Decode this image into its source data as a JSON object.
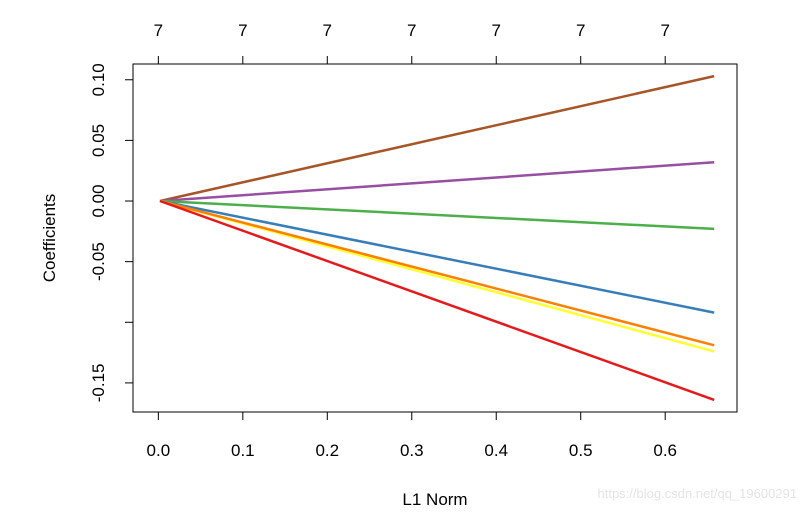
{
  "chart_data": {
    "type": "line",
    "xlabel": "L1 Norm",
    "ylabel": "Coefficients",
    "xlim": [
      -0.03,
      0.685
    ],
    "ylim": [
      -0.174,
      0.113
    ],
    "x_ticks": [
      0.0,
      0.1,
      0.2,
      0.3,
      0.4,
      0.5,
      0.6
    ],
    "x_tick_labels": [
      "0.0",
      "0.1",
      "0.2",
      "0.3",
      "0.4",
      "0.5",
      "0.6"
    ],
    "y_ticks": [
      -0.15,
      -0.1,
      -0.05,
      0.0,
      0.05,
      0.1
    ],
    "y_tick_labels": [
      "-0.15",
      "",
      "-0.05",
      "0.00",
      "0.05",
      "0.10"
    ],
    "top_ticks": [
      0.0,
      0.1,
      0.2,
      0.3,
      0.4,
      0.5,
      0.6
    ],
    "top_tick_labels": [
      "7",
      "7",
      "7",
      "7",
      "7",
      "7",
      "7"
    ],
    "grid": false,
    "legend": "none",
    "series": [
      {
        "color": "#a65628",
        "x": [
          0.002,
          0.658
        ],
        "y": [
          0.0,
          0.103
        ]
      },
      {
        "color": "#984ea3",
        "x": [
          0.002,
          0.658
        ],
        "y": [
          0.0,
          0.032
        ]
      },
      {
        "color": "#4daf4a",
        "x": [
          0.002,
          0.658
        ],
        "y": [
          0.0,
          -0.023
        ]
      },
      {
        "color": "#377eb8",
        "x": [
          0.002,
          0.658
        ],
        "y": [
          0.0,
          -0.092
        ]
      },
      {
        "color": "#ffff33",
        "x": [
          0.002,
          0.658
        ],
        "y": [
          0.0,
          -0.124
        ]
      },
      {
        "color": "#ff7f00",
        "x": [
          0.002,
          0.658
        ],
        "y": [
          0.0,
          -0.119
        ]
      },
      {
        "color": "#e41a1c",
        "x": [
          0.002,
          0.658
        ],
        "y": [
          0.0,
          -0.164
        ]
      }
    ]
  },
  "watermark": "https://blog.csdn.net/qq_19600291"
}
